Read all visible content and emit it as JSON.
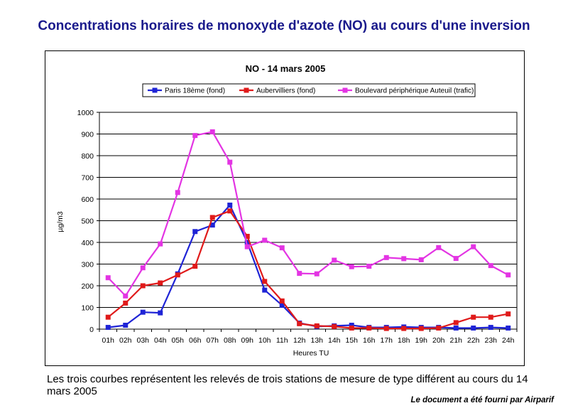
{
  "page_title": "Concentrations horaires de monoxyde d'azote (NO) au cours d'une inversion",
  "caption": "Les trois courbes représentent les relevés de trois stations de mesure de type différent au cours du 14 mars 2005",
  "credit": "Le document a été fourni par Airparif",
  "chart_data": {
    "type": "line",
    "title": "NO - 14 mars 2005",
    "xlabel": "Heures TU",
    "ylabel": "µg/m3",
    "ylim": [
      0,
      1000
    ],
    "yticks": [
      0,
      100,
      200,
      300,
      400,
      500,
      600,
      700,
      800,
      900,
      1000
    ],
    "grid": true,
    "legend_position": "top",
    "categories": [
      "01h",
      "02h",
      "03h",
      "04h",
      "05h",
      "06h",
      "07h",
      "08h",
      "09h",
      "10h",
      "11h",
      "12h",
      "13h",
      "14h",
      "15h",
      "16h",
      "17h",
      "18h",
      "19h",
      "20h",
      "21h",
      "22h",
      "23h",
      "24h"
    ],
    "series": [
      {
        "name": "Paris 18ème (fond)",
        "color": "#1f24d6",
        "marker": "square",
        "values": [
          8,
          18,
          78,
          75,
          255,
          450,
          480,
          572,
          400,
          180,
          110,
          28,
          12,
          15,
          18,
          8,
          8,
          10,
          8,
          8,
          5,
          5,
          8,
          5
        ]
      },
      {
        "name": "Aubervilliers (fond)",
        "color": "#e01a1a",
        "marker": "square",
        "values": [
          55,
          120,
          200,
          213,
          250,
          290,
          515,
          545,
          428,
          220,
          130,
          25,
          15,
          12,
          5,
          5,
          3,
          3,
          3,
          5,
          30,
          55,
          55,
          70
        ]
      },
      {
        "name": "Boulevard périphérique Auteuil (trafic)",
        "color": "#e334e3",
        "marker": "square",
        "values": [
          237,
          153,
          283,
          393,
          630,
          893,
          910,
          770,
          380,
          410,
          375,
          257,
          255,
          318,
          288,
          290,
          330,
          325,
          320,
          376,
          326,
          380,
          293,
          250
        ]
      }
    ]
  }
}
